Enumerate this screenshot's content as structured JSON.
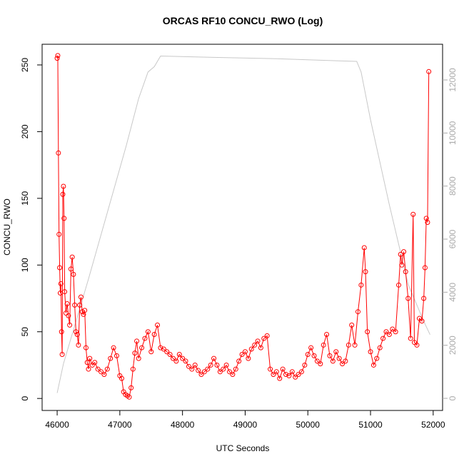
{
  "chart_data": {
    "type": "line",
    "title": "ORCAS RF10 CONCU_RWO (Log)",
    "xlabel": "UTC Seconds",
    "ylabel": "CONCU_RWO",
    "xlim": [
      45760,
      52150
    ],
    "xticks": [
      46000,
      47000,
      48000,
      49000,
      50000,
      51000,
      52000
    ],
    "ylim": [
      -9,
      265.5
    ],
    "yticks": [
      0,
      50,
      100,
      150,
      200,
      250
    ],
    "y2lim": [
      -457,
      13345
    ],
    "y2ticks": [
      0,
      2000,
      4000,
      6000,
      8000,
      10000,
      12000
    ],
    "series": [
      {
        "color": "#ff0000",
        "markers": true,
        "x": [
          46000,
          46010,
          46020,
          46030,
          46040,
          46050,
          46060,
          46070,
          46080,
          46090,
          46100,
          46110,
          46120,
          46140,
          46160,
          46180,
          46200,
          46220,
          46240,
          46260,
          46280,
          46300,
          46320,
          46340,
          46360,
          46380,
          46400,
          46420,
          46440,
          46460,
          46480,
          46500,
          46520,
          46560,
          46600,
          46650,
          46700,
          46750,
          46800,
          46850,
          46900,
          46950,
          47000,
          47030,
          47060,
          47090,
          47120,
          47150,
          47180,
          47210,
          47240,
          47270,
          47300,
          47350,
          47400,
          47450,
          47500,
          47550,
          47600,
          47650,
          47700,
          47750,
          47800,
          47850,
          47900,
          47950,
          48000,
          48050,
          48100,
          48150,
          48200,
          48250,
          48300,
          48350,
          48400,
          48450,
          48500,
          48550,
          48600,
          48650,
          48700,
          48750,
          48800,
          48850,
          48900,
          48950,
          49000,
          49050,
          49100,
          49150,
          49200,
          49250,
          49300,
          49350,
          49400,
          49450,
          49500,
          49550,
          49600,
          49650,
          49700,
          49750,
          49800,
          49850,
          49900,
          49950,
          50000,
          50050,
          50100,
          50150,
          50200,
          50250,
          50300,
          50350,
          50400,
          50450,
          50500,
          50550,
          50600,
          50650,
          50700,
          50750,
          50800,
          50850,
          50900,
          50920,
          50950,
          51000,
          51050,
          51100,
          51150,
          51200,
          51250,
          51300,
          51350,
          51400,
          51450,
          51480,
          51500,
          51530,
          51560,
          51600,
          51640,
          51680,
          51700,
          51740,
          51780,
          51820,
          51850,
          51870,
          51890,
          51910,
          51930
        ],
        "values": [
          255,
          257,
          184,
          123,
          98,
          79,
          86,
          50,
          33,
          153,
          159,
          135,
          80,
          64,
          71,
          62,
          55,
          97,
          106,
          93,
          70,
          50,
          48,
          40,
          70,
          76,
          65,
          63,
          66,
          38,
          27,
          22,
          30,
          25,
          27,
          22,
          20,
          18,
          22,
          30,
          38,
          32,
          17,
          15,
          5,
          3,
          2,
          1,
          8,
          22,
          34,
          43,
          30,
          38,
          45,
          50,
          35,
          48,
          55,
          38,
          37,
          35,
          33,
          30,
          28,
          33,
          30,
          28,
          24,
          22,
          25,
          21,
          18,
          20,
          22,
          25,
          30,
          25,
          20,
          22,
          25,
          20,
          18,
          22,
          28,
          33,
          35,
          30,
          37,
          40,
          43,
          38,
          45,
          47,
          22,
          18,
          20,
          15,
          22,
          18,
          17,
          20,
          16,
          18,
          20,
          25,
          33,
          38,
          32,
          28,
          26,
          40,
          48,
          32,
          28,
          35,
          30,
          26,
          28,
          40,
          55,
          40,
          65,
          85,
          113,
          95,
          50,
          35,
          25,
          30,
          38,
          45,
          50,
          48,
          52,
          50,
          85,
          108,
          100,
          110,
          95,
          75,
          45,
          138,
          42,
          40,
          60,
          58,
          75,
          98,
          135,
          132,
          245
        ]
      },
      {
        "color": "#c8c8c8",
        "axis": "y2",
        "x": [
          46000,
          46100,
          46300,
          46500,
          46800,
          47100,
          47300,
          47450,
          47550,
          47650,
          48500,
          49500,
          50500,
          50780,
          50850,
          51000,
          51300,
          51600,
          51850,
          51950
        ],
        "values": [
          200,
          1300,
          2900,
          4500,
          7000,
          9500,
          11300,
          12300,
          12500,
          12900,
          12850,
          12800,
          12720,
          12700,
          12300,
          10500,
          7300,
          4300,
          2900,
          2400
        ]
      }
    ]
  }
}
